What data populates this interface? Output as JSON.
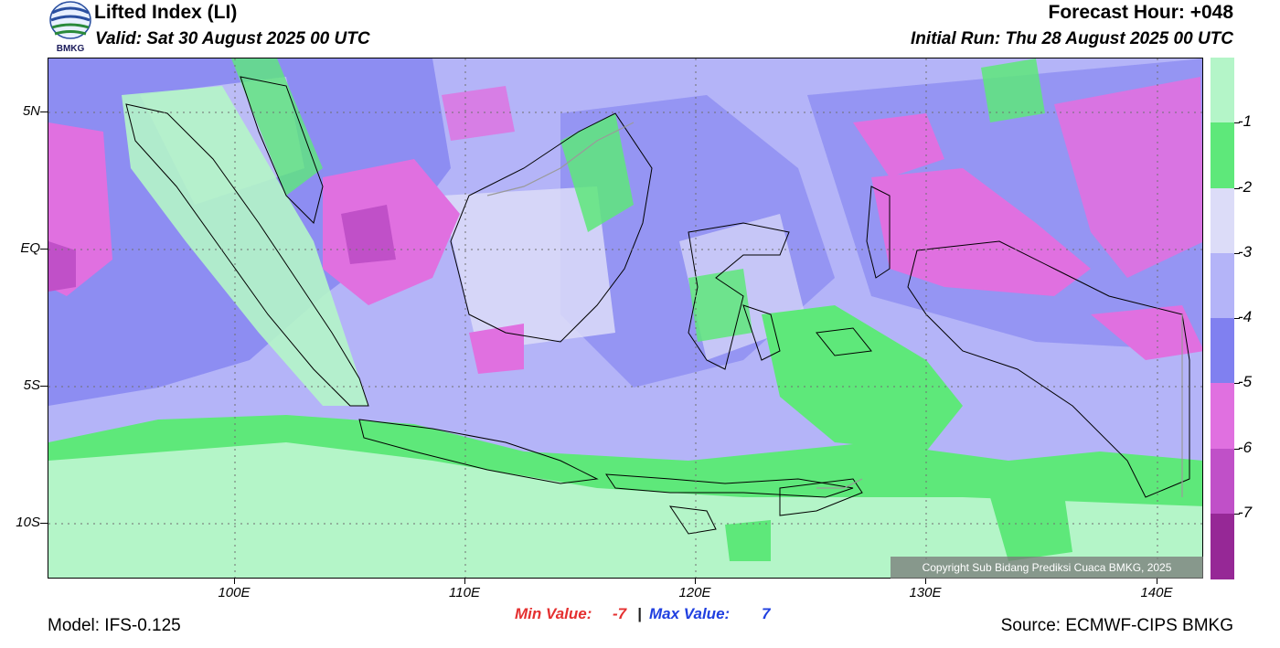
{
  "header": {
    "title": "Lifted Index (LI)",
    "valid": "Valid: Sat 30 August 2025 00 UTC",
    "forecast_hour": "Forecast Hour: +048",
    "initial_run": "Initial Run: Thu 28 August 2025 00 UTC",
    "logo_text": "BMKG"
  },
  "map": {
    "lat_labels": [
      "5N",
      "EQ",
      "5S",
      "10S"
    ],
    "lon_labels": [
      "100E",
      "110E",
      "120E",
      "130E",
      "140E"
    ],
    "copyright": "Copyright Sub Bidang Prediksi Cuaca BMKG, 2025",
    "colors": {
      "above_-1": "#b4f5c8",
      "-1_to_-2": "#5ee87a",
      "-2_to_-3": "#dcdcf8",
      "-3_to_-4": "#b4b4f8",
      "-4_to_-5": "#8080f0",
      "-5_to_-6": "#e070e0",
      "-6_to_-7": "#c050c8",
      "below_-7": "#962896"
    }
  },
  "legend": {
    "labels": [
      "-1",
      "-2",
      "-3",
      "-4",
      "-5",
      "-6",
      "-7"
    ],
    "colors": [
      "#b4f5c8",
      "#5ee87a",
      "#dcdcf8",
      "#b4b4f8",
      "#8080f0",
      "#e070e0",
      "#c050c8",
      "#962896"
    ]
  },
  "footer": {
    "min_label": "Min Value:",
    "min_value": "-7",
    "separator": "|",
    "max_label": "Max Value:",
    "max_value": "7",
    "model": "Model: IFS-0.125",
    "source": "Source: ECMWF-CIPS BMKG"
  }
}
